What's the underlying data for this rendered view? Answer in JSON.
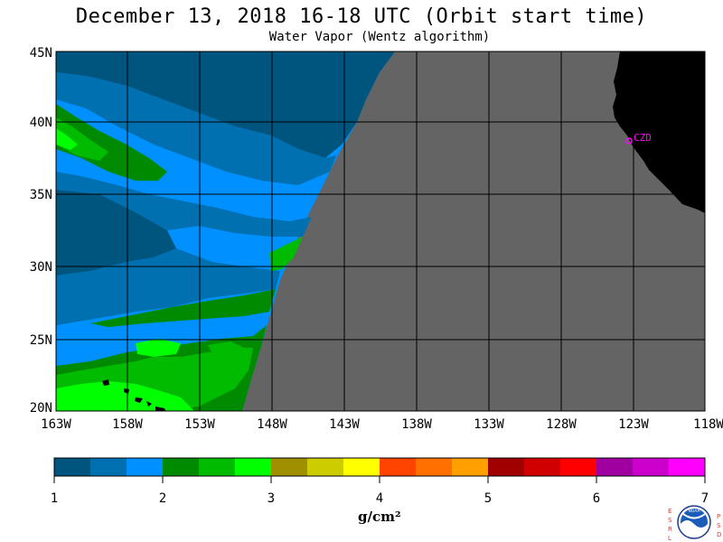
{
  "title": "December 13, 2018  16-18 UTC  (Orbit start time)",
  "subtitle": "Water Vapor (Wentz algorithm)",
  "map": {
    "lat_labels": [
      "45N",
      "40N",
      "35N",
      "30N",
      "25N",
      "20N"
    ],
    "lon_labels": [
      "163W",
      "158W",
      "153W",
      "148W",
      "143W",
      "138W",
      "133W",
      "128W",
      "123W",
      "118W"
    ],
    "station_label": "CZD",
    "colors": {
      "land": "#000000",
      "no_data": "#646464",
      "grid": "#000000",
      "station": "#ff00ff"
    }
  },
  "colorbar": {
    "ticks": [
      "1",
      "2",
      "3",
      "4",
      "5",
      "6",
      "7"
    ],
    "units": "g/cm²",
    "colors": [
      "#00557f",
      "#0070b0",
      "#0090ff",
      "#008a00",
      "#00bb00",
      "#00ff00",
      "#a09000",
      "#cccc00",
      "#ffff00",
      "#ff4400",
      "#ff7000",
      "#ffa000",
      "#a00000",
      "#d00000",
      "#ff0000",
      "#a000a0",
      "#cc00cc",
      "#ff00ff"
    ]
  },
  "logo": {
    "left_letters": "ESRL",
    "right_letters": "PSD",
    "center_text": "NOAA"
  }
}
